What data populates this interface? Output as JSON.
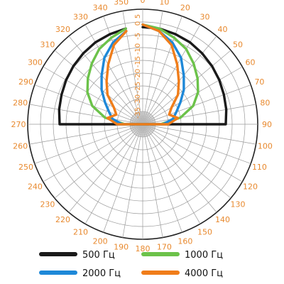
{
  "chart_data": {
    "type": "polar",
    "angle_unit": "degrees",
    "angle_ticks": [
      "0",
      "10",
      "20",
      "30",
      "40",
      "50",
      "60",
      "70",
      "80",
      "90",
      "100",
      "110",
      "120",
      "130",
      "140",
      "150",
      "160",
      "170",
      "180",
      "190",
      "200",
      "210",
      "220",
      "230",
      "240",
      "250",
      "260",
      "270",
      "280",
      "290",
      "300",
      "310",
      "320",
      "330",
      "340",
      "350"
    ],
    "radial_ticks": [
      "5",
      "0",
      "-5",
      "-10",
      "-15",
      "-20",
      "-25",
      "-30",
      "-35"
    ],
    "radial_unit": "dB",
    "r_range": [
      -40,
      5
    ],
    "series": [
      {
        "name": "500 Гц",
        "color": "#1a1a1a",
        "points": [
          [
            0,
            -2
          ],
          [
            10,
            -2
          ],
          [
            20,
            -2.5
          ],
          [
            30,
            -3
          ],
          [
            40,
            -3.8
          ],
          [
            50,
            -4.6
          ],
          [
            60,
            -5.4
          ],
          [
            70,
            -6.2
          ],
          [
            80,
            -6.8
          ],
          [
            90,
            -7.5
          ],
          [
            270,
            -7.5
          ],
          [
            280,
            -6.8
          ],
          [
            290,
            -6.2
          ],
          [
            300,
            -5.4
          ],
          [
            310,
            -4.6
          ],
          [
            320,
            -3.8
          ],
          [
            330,
            -3
          ],
          [
            340,
            -2.5
          ],
          [
            350,
            -2
          ]
        ]
      },
      {
        "name": "1000 Гц",
        "color": "#6cc24a",
        "points": [
          [
            0,
            -1
          ],
          [
            10,
            -2
          ],
          [
            20,
            -4
          ],
          [
            30,
            -6
          ],
          [
            40,
            -9
          ],
          [
            50,
            -12
          ],
          [
            60,
            -15
          ],
          [
            70,
            -19
          ],
          [
            80,
            -25
          ],
          [
            90,
            -33
          ],
          [
            270,
            -33
          ],
          [
            280,
            -25
          ],
          [
            290,
            -19
          ],
          [
            300,
            -15
          ],
          [
            310,
            -12
          ],
          [
            320,
            -9
          ],
          [
            330,
            -6
          ],
          [
            340,
            -4
          ],
          [
            350,
            -2
          ]
        ]
      },
      {
        "name": "2000 Гц",
        "color": "#1e88d8",
        "points": [
          [
            0,
            -1
          ],
          [
            10,
            -3
          ],
          [
            20,
            -6
          ],
          [
            30,
            -10
          ],
          [
            40,
            -15
          ],
          [
            50,
            -19
          ],
          [
            60,
            -23
          ],
          [
            70,
            -26
          ],
          [
            80,
            -28
          ],
          [
            90,
            -32
          ],
          [
            270,
            -32
          ],
          [
            280,
            -28
          ],
          [
            290,
            -26
          ],
          [
            300,
            -23
          ],
          [
            310,
            -19
          ],
          [
            320,
            -15
          ],
          [
            330,
            -10
          ],
          [
            340,
            -6
          ],
          [
            350,
            -3
          ]
        ]
      },
      {
        "name": "4000 Гц",
        "color": "#f07d1a",
        "points": [
          [
            0,
            -1
          ],
          [
            10,
            -3
          ],
          [
            20,
            -7
          ],
          [
            30,
            -13
          ],
          [
            40,
            -18
          ],
          [
            50,
            -22
          ],
          [
            60,
            -27
          ],
          [
            70,
            -29
          ],
          [
            80,
            -26
          ],
          [
            90,
            -30
          ],
          [
            270,
            -30
          ],
          [
            280,
            -26
          ],
          [
            290,
            -29
          ],
          [
            300,
            -27
          ],
          [
            310,
            -22
          ],
          [
            320,
            -18
          ],
          [
            330,
            -13
          ],
          [
            340,
            -7
          ],
          [
            350,
            -3
          ]
        ]
      }
    ],
    "grid": true,
    "legend_position": "bottom"
  }
}
